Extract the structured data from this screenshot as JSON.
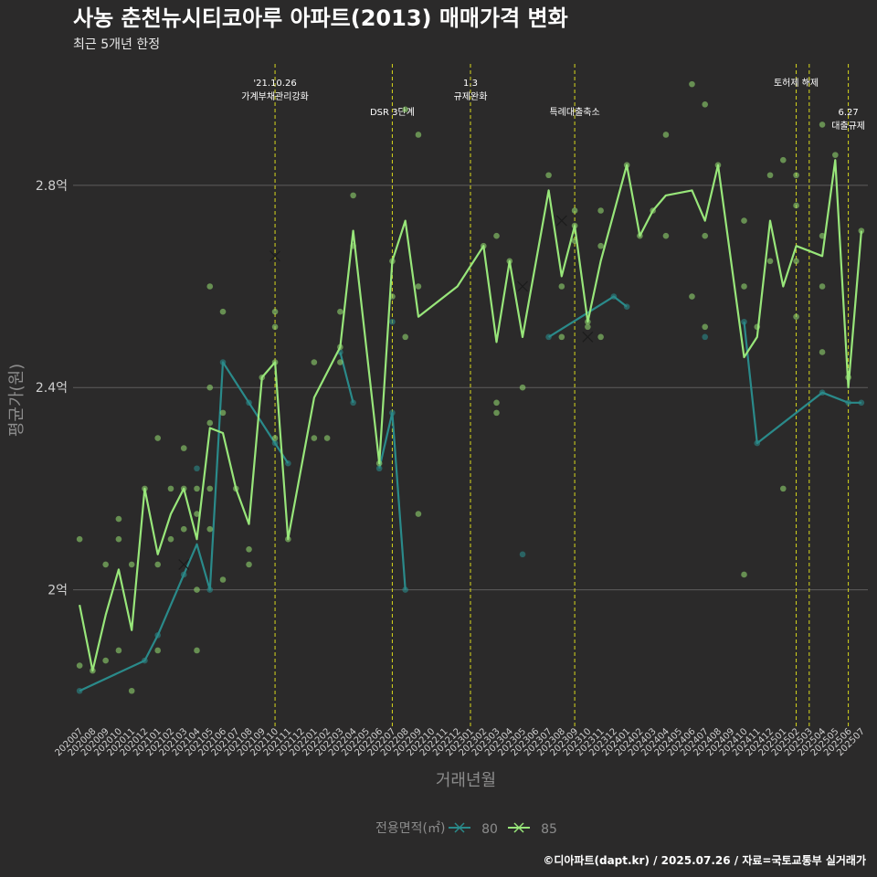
{
  "chart_data": {
    "type": "line",
    "title": "사농 춘천뉴시티코아루 아파트(2013) 매매가격 변화",
    "subtitle": "최근 5개년 한정",
    "xlabel": "거래년월",
    "ylabel": "평균가(원)",
    "caption": "©디아파트(dapt.kr) / 2025.07.26 / 자료=국토교통부 실거래가",
    "ylim": [
      1.73,
      3.04
    ],
    "yticks": [
      {
        "value": 2.0,
        "label": "2억"
      },
      {
        "value": 2.4,
        "label": "2.4억"
      },
      {
        "value": 2.8,
        "label": "2.8억"
      }
    ],
    "categories": [
      "202007",
      "202008",
      "202009",
      "202010",
      "202011",
      "202012",
      "202101",
      "202102",
      "202103",
      "202104",
      "202105",
      "202106",
      "202107",
      "202108",
      "202109",
      "202110",
      "202111",
      "202112",
      "202201",
      "202202",
      "202203",
      "202204",
      "202205",
      "202206",
      "202207",
      "202208",
      "202209",
      "202210",
      "202211",
      "202212",
      "202301",
      "202302",
      "202303",
      "202304",
      "202305",
      "202306",
      "202307",
      "202308",
      "202309",
      "202310",
      "202311",
      "202312",
      "202401",
      "202402",
      "202403",
      "202404",
      "202405",
      "202406",
      "202407",
      "202408",
      "202409",
      "202410",
      "202411",
      "202412",
      "202501",
      "202502",
      "202503",
      "202504",
      "202505",
      "202506",
      "202507"
    ],
    "legend": {
      "title": "전용면적(㎡)",
      "position": "bottom"
    },
    "series": [
      {
        "name": "80",
        "color": "#2a8a8a",
        "marker_color": "#2a8a8a",
        "line": [
          [
            0,
            1.8
          ],
          [
            5,
            1.86
          ],
          [
            6,
            1.91
          ],
          [
            8,
            2.03
          ],
          [
            9,
            2.09
          ],
          [
            10,
            2.0
          ],
          [
            11,
            2.45
          ],
          [
            13,
            2.37
          ],
          [
            15,
            2.29
          ],
          [
            16,
            2.25
          ],
          [
            null,
            null
          ],
          [
            20,
            2.47
          ],
          [
            21,
            2.37
          ],
          [
            null,
            null
          ],
          [
            23,
            2.24
          ],
          [
            24,
            2.35
          ],
          [
            25,
            2.0
          ],
          [
            null,
            null
          ],
          [
            36,
            2.5
          ],
          [
            41,
            2.58
          ],
          [
            42,
            2.56
          ],
          [
            null,
            null
          ],
          [
            51,
            2.53
          ],
          [
            52,
            2.29
          ],
          [
            57,
            2.39
          ],
          [
            59,
            2.37
          ],
          [
            60,
            2.37
          ]
        ],
        "points": [
          [
            0,
            1.8
          ],
          [
            5,
            1.86
          ],
          [
            6,
            1.91
          ],
          [
            8,
            2.03
          ],
          [
            9,
            2.24
          ],
          [
            10,
            2.0
          ],
          [
            11,
            2.45
          ],
          [
            13,
            2.37
          ],
          [
            15,
            2.29
          ],
          [
            16,
            2.25
          ],
          [
            20,
            2.47
          ],
          [
            21,
            2.37
          ],
          [
            23,
            2.24
          ],
          [
            24,
            2.35
          ],
          [
            24,
            2.53
          ],
          [
            25,
            2.0
          ],
          [
            34,
            2.07
          ],
          [
            36,
            2.5
          ],
          [
            41,
            2.58
          ],
          [
            42,
            2.56
          ],
          [
            48,
            2.5
          ],
          [
            51,
            2.53
          ],
          [
            52,
            2.29
          ],
          [
            57,
            2.39
          ],
          [
            59,
            2.37
          ],
          [
            60,
            2.37
          ]
        ],
        "cross": []
      },
      {
        "name": "85",
        "color": "#98e67a",
        "marker_color": "#8fd46e",
        "line": [
          [
            0,
            1.97
          ],
          [
            1,
            1.84
          ],
          [
            2,
            1.95
          ],
          [
            3,
            2.04
          ],
          [
            4,
            1.92
          ],
          [
            5,
            2.2
          ],
          [
            6,
            2.07
          ],
          [
            7,
            2.15
          ],
          [
            8,
            2.2
          ],
          [
            9,
            2.1
          ],
          [
            10,
            2.32
          ],
          [
            11,
            2.31
          ],
          [
            12,
            2.2
          ],
          [
            13,
            2.13
          ],
          [
            14,
            2.42
          ],
          [
            15,
            2.45
          ],
          [
            16,
            2.1
          ],
          [
            18,
            2.38
          ],
          [
            20,
            2.48
          ],
          [
            21,
            2.71
          ],
          [
            23,
            2.25
          ],
          [
            24,
            2.65
          ],
          [
            25,
            2.73
          ],
          [
            26,
            2.54
          ],
          [
            29,
            2.6
          ],
          [
            31,
            2.68
          ],
          [
            32,
            2.49
          ],
          [
            33,
            2.65
          ],
          [
            34,
            2.5
          ],
          [
            36,
            2.79
          ],
          [
            37,
            2.62
          ],
          [
            38,
            2.72
          ],
          [
            39,
            2.53
          ],
          [
            40,
            2.65
          ],
          [
            42,
            2.84
          ],
          [
            43,
            2.7
          ],
          [
            44,
            2.75
          ],
          [
            45,
            2.78
          ],
          [
            47,
            2.79
          ],
          [
            48,
            2.73
          ],
          [
            49,
            2.84
          ],
          [
            51,
            2.46
          ],
          [
            52,
            2.5
          ],
          [
            53,
            2.73
          ],
          [
            54,
            2.6
          ],
          [
            55,
            2.68
          ],
          [
            57,
            2.66
          ],
          [
            58,
            2.85
          ],
          [
            59,
            2.4
          ],
          [
            60,
            2.71
          ]
        ],
        "points": [
          [
            0,
            2.1
          ],
          [
            0,
            1.85
          ],
          [
            1,
            1.84
          ],
          [
            2,
            2.05
          ],
          [
            2,
            1.86
          ],
          [
            3,
            2.14
          ],
          [
            3,
            2.1
          ],
          [
            3,
            1.88
          ],
          [
            4,
            2.05
          ],
          [
            4,
            1.8
          ],
          [
            5,
            2.2
          ],
          [
            6,
            2.3
          ],
          [
            6,
            2.05
          ],
          [
            6,
            1.88
          ],
          [
            7,
            2.2
          ],
          [
            7,
            2.1
          ],
          [
            8,
            2.28
          ],
          [
            8,
            2.2
          ],
          [
            8,
            2.12
          ],
          [
            9,
            2.2
          ],
          [
            9,
            2.15
          ],
          [
            9,
            2.0
          ],
          [
            9,
            1.88
          ],
          [
            10,
            2.6
          ],
          [
            10,
            2.4
          ],
          [
            10,
            2.33
          ],
          [
            10,
            2.2
          ],
          [
            10,
            2.12
          ],
          [
            11,
            2.55
          ],
          [
            11,
            2.35
          ],
          [
            11,
            2.02
          ],
          [
            12,
            2.2
          ],
          [
            13,
            2.08
          ],
          [
            13,
            2.05
          ],
          [
            14,
            2.42
          ],
          [
            15,
            2.55
          ],
          [
            15,
            2.52
          ],
          [
            15,
            2.45
          ],
          [
            15,
            2.3
          ],
          [
            16,
            2.1
          ],
          [
            18,
            2.45
          ],
          [
            18,
            2.3
          ],
          [
            19,
            2.3
          ],
          [
            20,
            2.55
          ],
          [
            20,
            2.48
          ],
          [
            20,
            2.45
          ],
          [
            21,
            2.78
          ],
          [
            21,
            2.68
          ],
          [
            23,
            2.25
          ],
          [
            24,
            2.58
          ],
          [
            24,
            2.65
          ],
          [
            25,
            2.95
          ],
          [
            25,
            2.5
          ],
          [
            26,
            2.6
          ],
          [
            26,
            2.9
          ],
          [
            26,
            2.15
          ],
          [
            31,
            2.68
          ],
          [
            32,
            2.7
          ],
          [
            32,
            2.37
          ],
          [
            32,
            2.35
          ],
          [
            33,
            2.65
          ],
          [
            34,
            2.4
          ],
          [
            36,
            2.82
          ],
          [
            37,
            2.5
          ],
          [
            37,
            2.6
          ],
          [
            38,
            2.75
          ],
          [
            38,
            2.72
          ],
          [
            38,
            2.69
          ],
          [
            39,
            2.52
          ],
          [
            39,
            2.53
          ],
          [
            40,
            2.5
          ],
          [
            40,
            2.75
          ],
          [
            40,
            2.68
          ],
          [
            42,
            2.84
          ],
          [
            43,
            2.7
          ],
          [
            44,
            2.75
          ],
          [
            45,
            2.9
          ],
          [
            45,
            2.7
          ],
          [
            47,
            3.0
          ],
          [
            47,
            2.58
          ],
          [
            48,
            2.96
          ],
          [
            48,
            2.7
          ],
          [
            48,
            2.52
          ],
          [
            49,
            2.84
          ],
          [
            51,
            2.73
          ],
          [
            51,
            2.6
          ],
          [
            51,
            2.03
          ],
          [
            52,
            2.52
          ],
          [
            53,
            2.82
          ],
          [
            53,
            2.65
          ],
          [
            54,
            2.85
          ],
          [
            54,
            2.2
          ],
          [
            55,
            2.82
          ],
          [
            55,
            2.76
          ],
          [
            55,
            2.65
          ],
          [
            55,
            2.54
          ],
          [
            57,
            2.92
          ],
          [
            57,
            2.7
          ],
          [
            57,
            2.6
          ],
          [
            57,
            2.47
          ],
          [
            58,
            2.86
          ],
          [
            59,
            2.42
          ],
          [
            60,
            2.71
          ]
        ],
        "cross": [
          [
            8,
            2.05
          ],
          [
            15,
            2.66
          ],
          [
            34,
            2.6
          ],
          [
            37,
            2.73
          ],
          [
            39,
            2.5
          ]
        ]
      }
    ],
    "events": [
      {
        "x": 15,
        "label_lines": [
          "'21.10.26",
          "가계부채관리강화"
        ],
        "row": 0
      },
      {
        "x": 24,
        "label_lines": [
          "DSR 3단계"
        ],
        "row": 1
      },
      {
        "x": 30,
        "label_lines": [
          "1.3",
          "규제완화"
        ],
        "row": 0
      },
      {
        "x": 38,
        "label_lines": [
          "특례대출축소"
        ],
        "row": 1
      },
      {
        "x": 55,
        "label_lines": [
          "토허제 해제"
        ],
        "row": 0
      },
      {
        "x": 56,
        "label_lines": [],
        "row": 0
      },
      {
        "x": 59,
        "label_lines": [
          "6.27",
          "대출규제"
        ],
        "row": 1
      }
    ],
    "grid": true
  }
}
